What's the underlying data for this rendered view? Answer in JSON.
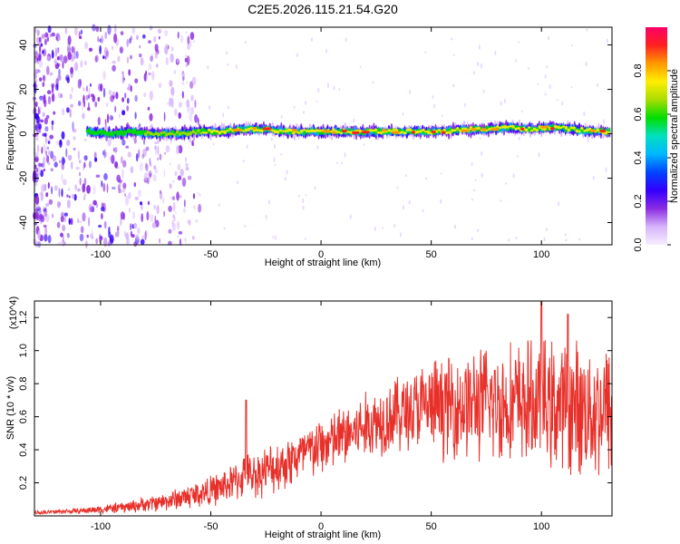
{
  "figure_title": "C2E5.2026.115.21.54.G20",
  "colors": {
    "snr_line": "#e8302a",
    "ridge_core": "#e8202a",
    "scatter_purple": "#7a2ee0"
  },
  "chart_data": [
    {
      "type": "heatmap",
      "title": "C2E5.2026.115.21.54.G20",
      "xlabel": "Height of straight line (km)",
      "ylabel": "Frequency (Hz)",
      "xlim": [
        -130,
        132
      ],
      "ylim": [
        -50,
        48
      ],
      "x_ticks": [
        -100,
        -50,
        0,
        50,
        100
      ],
      "x_tick_labels": [
        "-100",
        "-50",
        "0",
        "50",
        "100"
      ],
      "y_ticks": [
        -40,
        -20,
        0,
        20,
        40
      ],
      "y_tick_labels": [
        "-40",
        "-20",
        "0",
        "20",
        "40"
      ],
      "colorbar": {
        "label": "Normalized spectral amplitude",
        "range": [
          0,
          1
        ],
        "ticks": [
          0,
          0.2,
          0.4,
          0.6,
          0.8
        ],
        "tick_labels": [
          "0.0",
          "0.2",
          "0.4",
          "0.6",
          "0.8"
        ],
        "colormap": [
          "#f6eefe",
          "#d7b4fa",
          "#8a2be2",
          "#3300ff",
          "#0044ff",
          "#00b7ff",
          "#00e0c0",
          "#00dd00",
          "#aadd00",
          "#ffee00",
          "#ff9900",
          "#ff2020",
          "#ff0066"
        ]
      },
      "ridge": {
        "x": [
          -105,
          -95,
          -85,
          -75,
          -65,
          -55,
          -45,
          -35,
          -25,
          -15,
          -5,
          5,
          15,
          25,
          35,
          45,
          55,
          65,
          75,
          85,
          95,
          105,
          115,
          125,
          132
        ],
        "frequency_hz": [
          1,
          0,
          1,
          0,
          0,
          1,
          1,
          2,
          2,
          1,
          1,
          1,
          1,
          1,
          1,
          1,
          1,
          2,
          2,
          3,
          2,
          3,
          2,
          1,
          1
        ],
        "peak_amplitude": [
          0.55,
          0.6,
          0.6,
          0.65,
          0.7,
          0.7,
          0.75,
          0.75,
          0.8,
          0.8,
          0.85,
          0.85,
          0.85,
          0.9,
          0.9,
          0.9,
          0.9,
          0.85,
          0.85,
          0.85,
          0.8,
          0.8,
          0.75,
          0.75,
          0.7
        ]
      }
    },
    {
      "type": "line",
      "title": "",
      "xlabel": "Height of straight line (km)",
      "ylabel": "SNR (10 * v/v)",
      "scale_label": "(x10^4)",
      "xlim": [
        -130,
        132
      ],
      "ylim": [
        0,
        1.3
      ],
      "x_ticks": [
        -100,
        -50,
        0,
        50,
        100
      ],
      "x_tick_labels": [
        "-100",
        "-50",
        "0",
        "50",
        "100"
      ],
      "y_ticks": [
        0.2,
        0.4,
        0.6,
        0.8,
        1.0,
        1.2
      ],
      "y_tick_labels": [
        "0.2",
        "0.4",
        "0.6",
        "0.8",
        "1.0",
        "1.2"
      ],
      "series": [
        {
          "name": "SNR",
          "trend_x": [
            -130,
            -110,
            -90,
            -80,
            -70,
            -60,
            -50,
            -40,
            -35,
            -30,
            -20,
            -10,
            0,
            10,
            20,
            30,
            40,
            50,
            60,
            70,
            80,
            90,
            100,
            110,
            120,
            132
          ],
          "trend_y": [
            0.02,
            0.03,
            0.05,
            0.07,
            0.09,
            0.12,
            0.15,
            0.2,
            0.24,
            0.25,
            0.3,
            0.36,
            0.42,
            0.48,
            0.54,
            0.6,
            0.64,
            0.66,
            0.67,
            0.68,
            0.68,
            0.68,
            0.67,
            0.66,
            0.65,
            0.64
          ],
          "spread_y": [
            0.01,
            0.015,
            0.03,
            0.04,
            0.05,
            0.07,
            0.08,
            0.1,
            0.12,
            0.12,
            0.14,
            0.15,
            0.16,
            0.17,
            0.18,
            0.2,
            0.22,
            0.25,
            0.28,
            0.3,
            0.32,
            0.33,
            0.34,
            0.35,
            0.36,
            0.37
          ]
        }
      ],
      "annotations": [
        {
          "x": -34,
          "y": 0.7,
          "text": ""
        },
        {
          "x": 100,
          "y": 1.3,
          "text": ""
        },
        {
          "x": 112,
          "y": 1.22,
          "text": ""
        }
      ]
    }
  ]
}
